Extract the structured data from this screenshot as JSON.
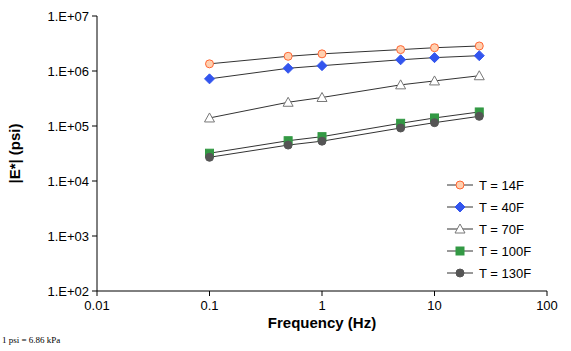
{
  "chart_data": {
    "type": "line",
    "x_label": "Frequency (Hz)",
    "y_label": "|E*| (psi)",
    "annotations": [
      "1 psi = 6.86 kPa"
    ],
    "log": true,
    "grid": false,
    "legend": "bottom-right",
    "x": [
      0.1,
      0.5,
      1,
      5,
      10,
      25
    ],
    "xlim": [
      0.01,
      100
    ],
    "xticks": [
      0.01,
      0.1,
      1,
      10,
      100
    ],
    "ylim": [
      100,
      10000000
    ],
    "yticks": [
      {
        "value": 100,
        "label": "1.E+02"
      },
      {
        "value": 1000,
        "label": "1.E+03"
      },
      {
        "value": 10000,
        "label": "1.E+04"
      },
      {
        "value": 100000,
        "label": "1.E+05"
      },
      {
        "value": 1000000,
        "label": "1.E+06"
      },
      {
        "value": 10000000,
        "label": "1.E+07"
      }
    ],
    "series": [
      {
        "name": "T = 14F",
        "color": "#ff6633",
        "marker": "open_circle",
        "values": [
          1350000,
          1850000,
          2050000,
          2450000,
          2650000,
          2850000
        ]
      },
      {
        "name": "T = 40F",
        "color": "#3355ee",
        "marker": "diamond",
        "values": [
          720000,
          1120000,
          1250000,
          1600000,
          1750000,
          1900000
        ]
      },
      {
        "name": "T = 70F",
        "color": "#777777",
        "marker": "open_triangle",
        "values": [
          140000,
          270000,
          330000,
          560000,
          660000,
          820000
        ]
      },
      {
        "name": "T = 100F",
        "color": "#339944",
        "marker": "square",
        "values": [
          32000,
          54000,
          64000,
          112000,
          140000,
          180000
        ]
      },
      {
        "name": "T = 130F",
        "color": "#555555",
        "marker": "circle",
        "values": [
          27000,
          45000,
          53000,
          92000,
          115000,
          150000
        ]
      }
    ]
  }
}
